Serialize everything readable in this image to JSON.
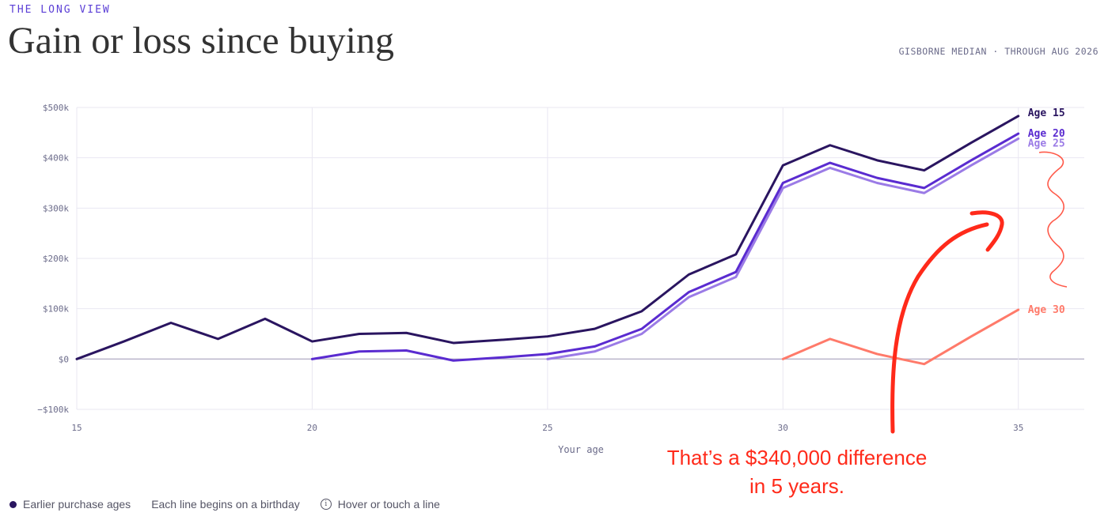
{
  "header": {
    "kicker": "THE LONG VIEW",
    "title": "Gain or loss since buying",
    "meta": "GISBORNE MEDIAN · THROUGH AUG 2026"
  },
  "chart_data": {
    "type": "line",
    "xlabel": "Your age",
    "ylabel": "",
    "xlim": [
      15,
      36.4
    ],
    "ylim": [
      -100000,
      500000
    ],
    "x_ticks": [
      15,
      20,
      25,
      30,
      35
    ],
    "y_ticks": [
      {
        "value": 500000,
        "label": "$500k"
      },
      {
        "value": 400000,
        "label": "$400k"
      },
      {
        "value": 300000,
        "label": "$300k"
      },
      {
        "value": 200000,
        "label": "$200k"
      },
      {
        "value": 100000,
        "label": "$100k"
      },
      {
        "value": 0,
        "label": "$0"
      },
      {
        "value": -100000,
        "label": "−$100k"
      }
    ],
    "grid": true,
    "series": [
      {
        "name": "Age 15",
        "color": "#2a1560",
        "x": [
          15,
          16,
          17,
          18,
          19,
          20,
          21,
          22,
          23,
          24,
          25,
          26,
          27,
          28,
          29,
          30,
          31,
          32,
          33,
          34,
          35
        ],
        "y": [
          0,
          35000,
          72000,
          40000,
          80000,
          35000,
          50000,
          52000,
          32000,
          38000,
          45000,
          60000,
          95000,
          168000,
          208000,
          385000,
          425000,
          395000,
          375000,
          430000,
          483000
        ]
      },
      {
        "name": "Age 20",
        "color": "#5a2bd0",
        "x": [
          20,
          21,
          22,
          23,
          24,
          25,
          26,
          27,
          28,
          29,
          30,
          31,
          32,
          33,
          34,
          35
        ],
        "y": [
          0,
          15000,
          17000,
          -3000,
          3000,
          10000,
          25000,
          60000,
          133000,
          173000,
          350000,
          390000,
          360000,
          340000,
          395000,
          448000
        ]
      },
      {
        "name": "Age 25",
        "color": "#9b7be6",
        "x": [
          25,
          26,
          27,
          28,
          29,
          30,
          31,
          32,
          33,
          34,
          35
        ],
        "y": [
          0,
          15000,
          50000,
          123000,
          163000,
          340000,
          380000,
          350000,
          330000,
          385000,
          438000
        ]
      },
      {
        "name": "Age 30",
        "color": "#ff7a6a",
        "x": [
          30,
          31,
          32,
          33,
          34,
          35
        ],
        "y": [
          0,
          40000,
          10000,
          -10000,
          45000,
          98000
        ]
      }
    ]
  },
  "annotation": {
    "line1": "That’s a $340,000 difference",
    "line2": "in 5 years."
  },
  "footer": {
    "legend_dot_label": "Earlier purchase ages",
    "note": "Each line begins on a birthday",
    "hint": "Hover or touch a line",
    "hint_icon": "info-icon"
  }
}
